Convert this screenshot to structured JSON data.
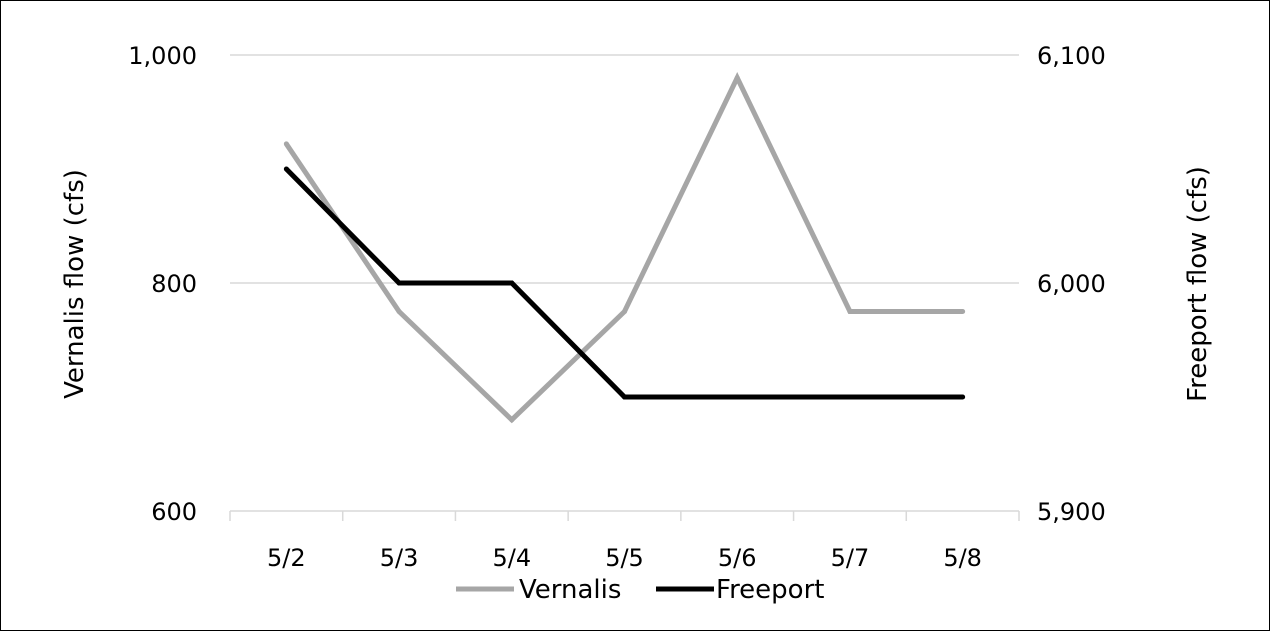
{
  "chart_data": {
    "type": "line",
    "categories": [
      "5/2",
      "5/3",
      "5/4",
      "5/5",
      "5/6",
      "5/7",
      "5/8"
    ],
    "series": [
      {
        "name": "Vernalis",
        "axis": "left",
        "color": "#a6a6a6",
        "values": [
          922,
          775,
          680,
          775,
          980,
          775,
          775
        ]
      },
      {
        "name": "Freeport",
        "axis": "right",
        "color": "#000000",
        "values": [
          6050,
          6000,
          6000,
          5950,
          5950,
          5950,
          5950
        ]
      }
    ],
    "ylabel": "Vernalis flow (cfs)",
    "y2label": "Freeport flow (cfs)",
    "ylim": [
      600,
      1000
    ],
    "y2lim": [
      5900,
      6100
    ],
    "yticks": [
      "600",
      "800",
      "1,000"
    ],
    "y2ticks": [
      "5,900",
      "6,000",
      "6,100"
    ],
    "grid": true,
    "legend": "bottom"
  }
}
